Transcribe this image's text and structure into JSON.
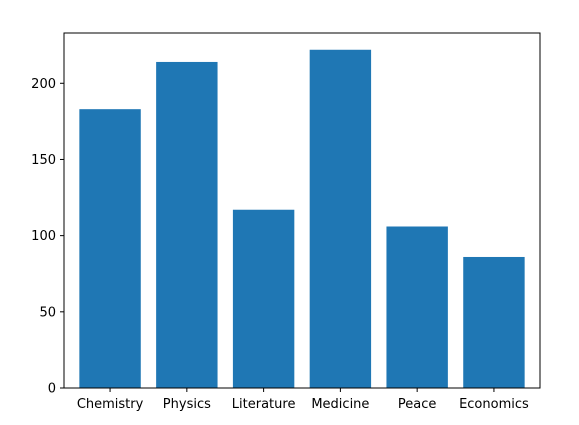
{
  "chart_data": {
    "type": "bar",
    "title": "",
    "xlabel": "",
    "ylabel": "",
    "categories": [
      "Chemistry",
      "Physics",
      "Literature",
      "Medicine",
      "Peace",
      "Economics"
    ],
    "values": [
      183,
      214,
      117,
      222,
      106,
      86
    ],
    "ylim": [
      0,
      233
    ],
    "yticks": [
      0,
      50,
      100,
      150,
      200
    ],
    "bar_color": "#1f77b4",
    "grid": false,
    "legend": "none"
  }
}
